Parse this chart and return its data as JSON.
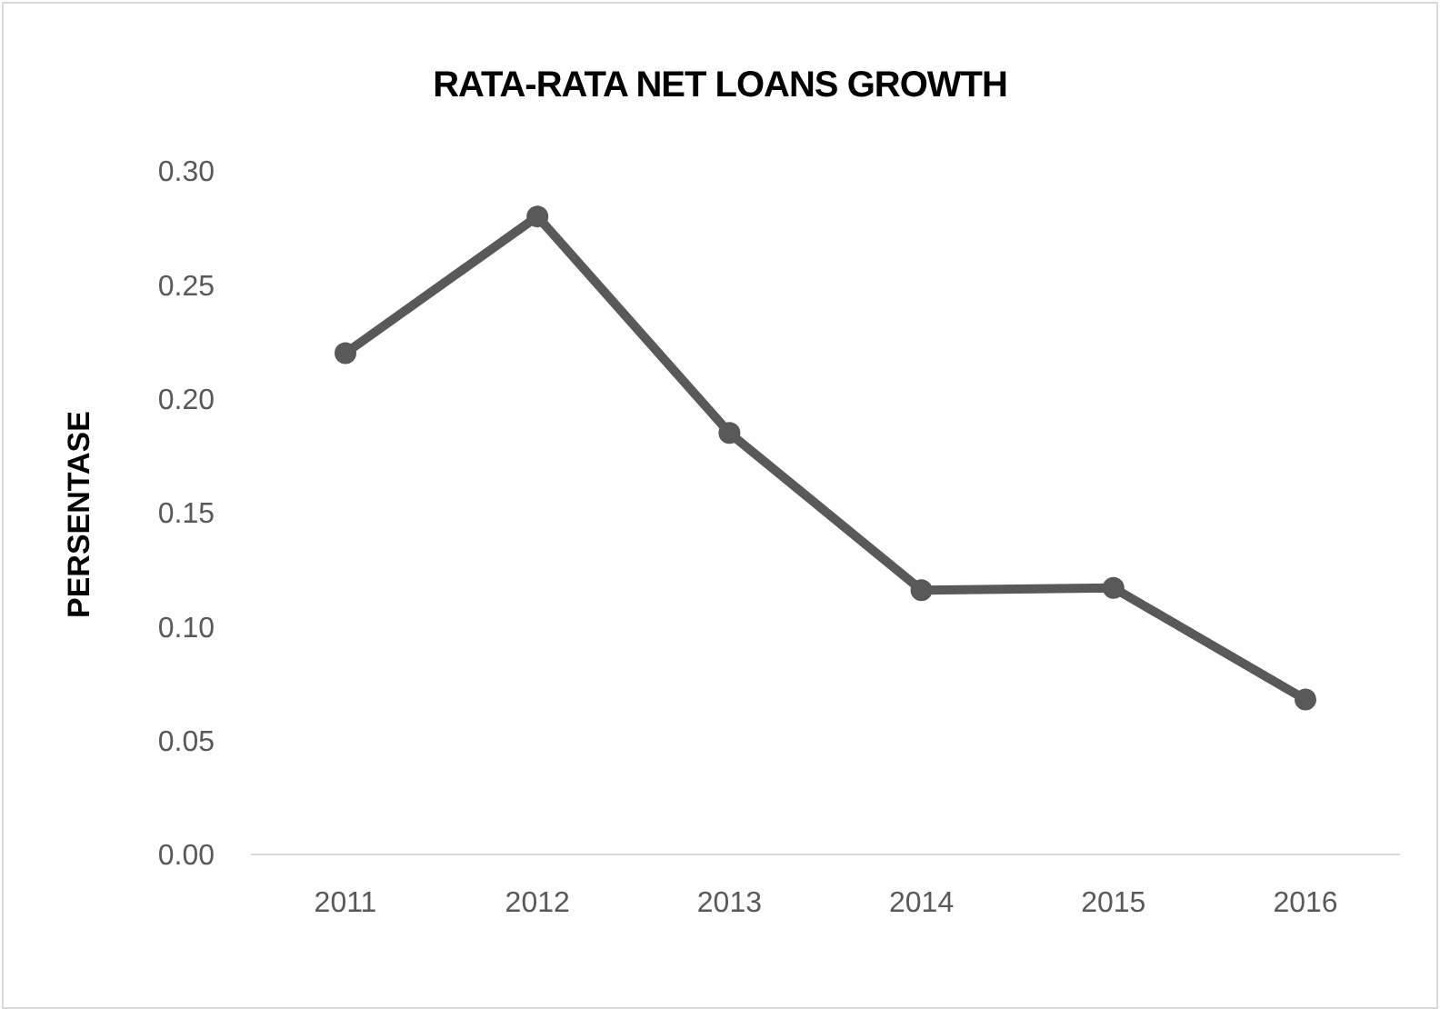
{
  "chart_data": {
    "type": "line",
    "title": "RATA-RATA NET LOANS GROWTH",
    "ylabel": "PERSENTASE",
    "categories": [
      "2011",
      "2012",
      "2013",
      "2014",
      "2015",
      "2016"
    ],
    "series": [
      {
        "color": "#595959",
        "values": [
          0.22,
          0.28,
          0.185,
          0.116,
          0.117,
          0.068
        ]
      }
    ],
    "ylim": [
      0,
      0.3
    ],
    "yticks": [
      {
        "value": 0,
        "label": "0.00"
      },
      {
        "value": 0.05,
        "label": "0.05"
      },
      {
        "value": 0.1,
        "label": "0.10"
      },
      {
        "value": 0.15,
        "label": "0.15"
      },
      {
        "value": 0.2,
        "label": "0.20"
      },
      {
        "value": 0.25,
        "label": "0.25"
      },
      {
        "value": 0.3,
        "label": "0.30"
      }
    ],
    "marker": "circle",
    "line_style": "solid"
  }
}
